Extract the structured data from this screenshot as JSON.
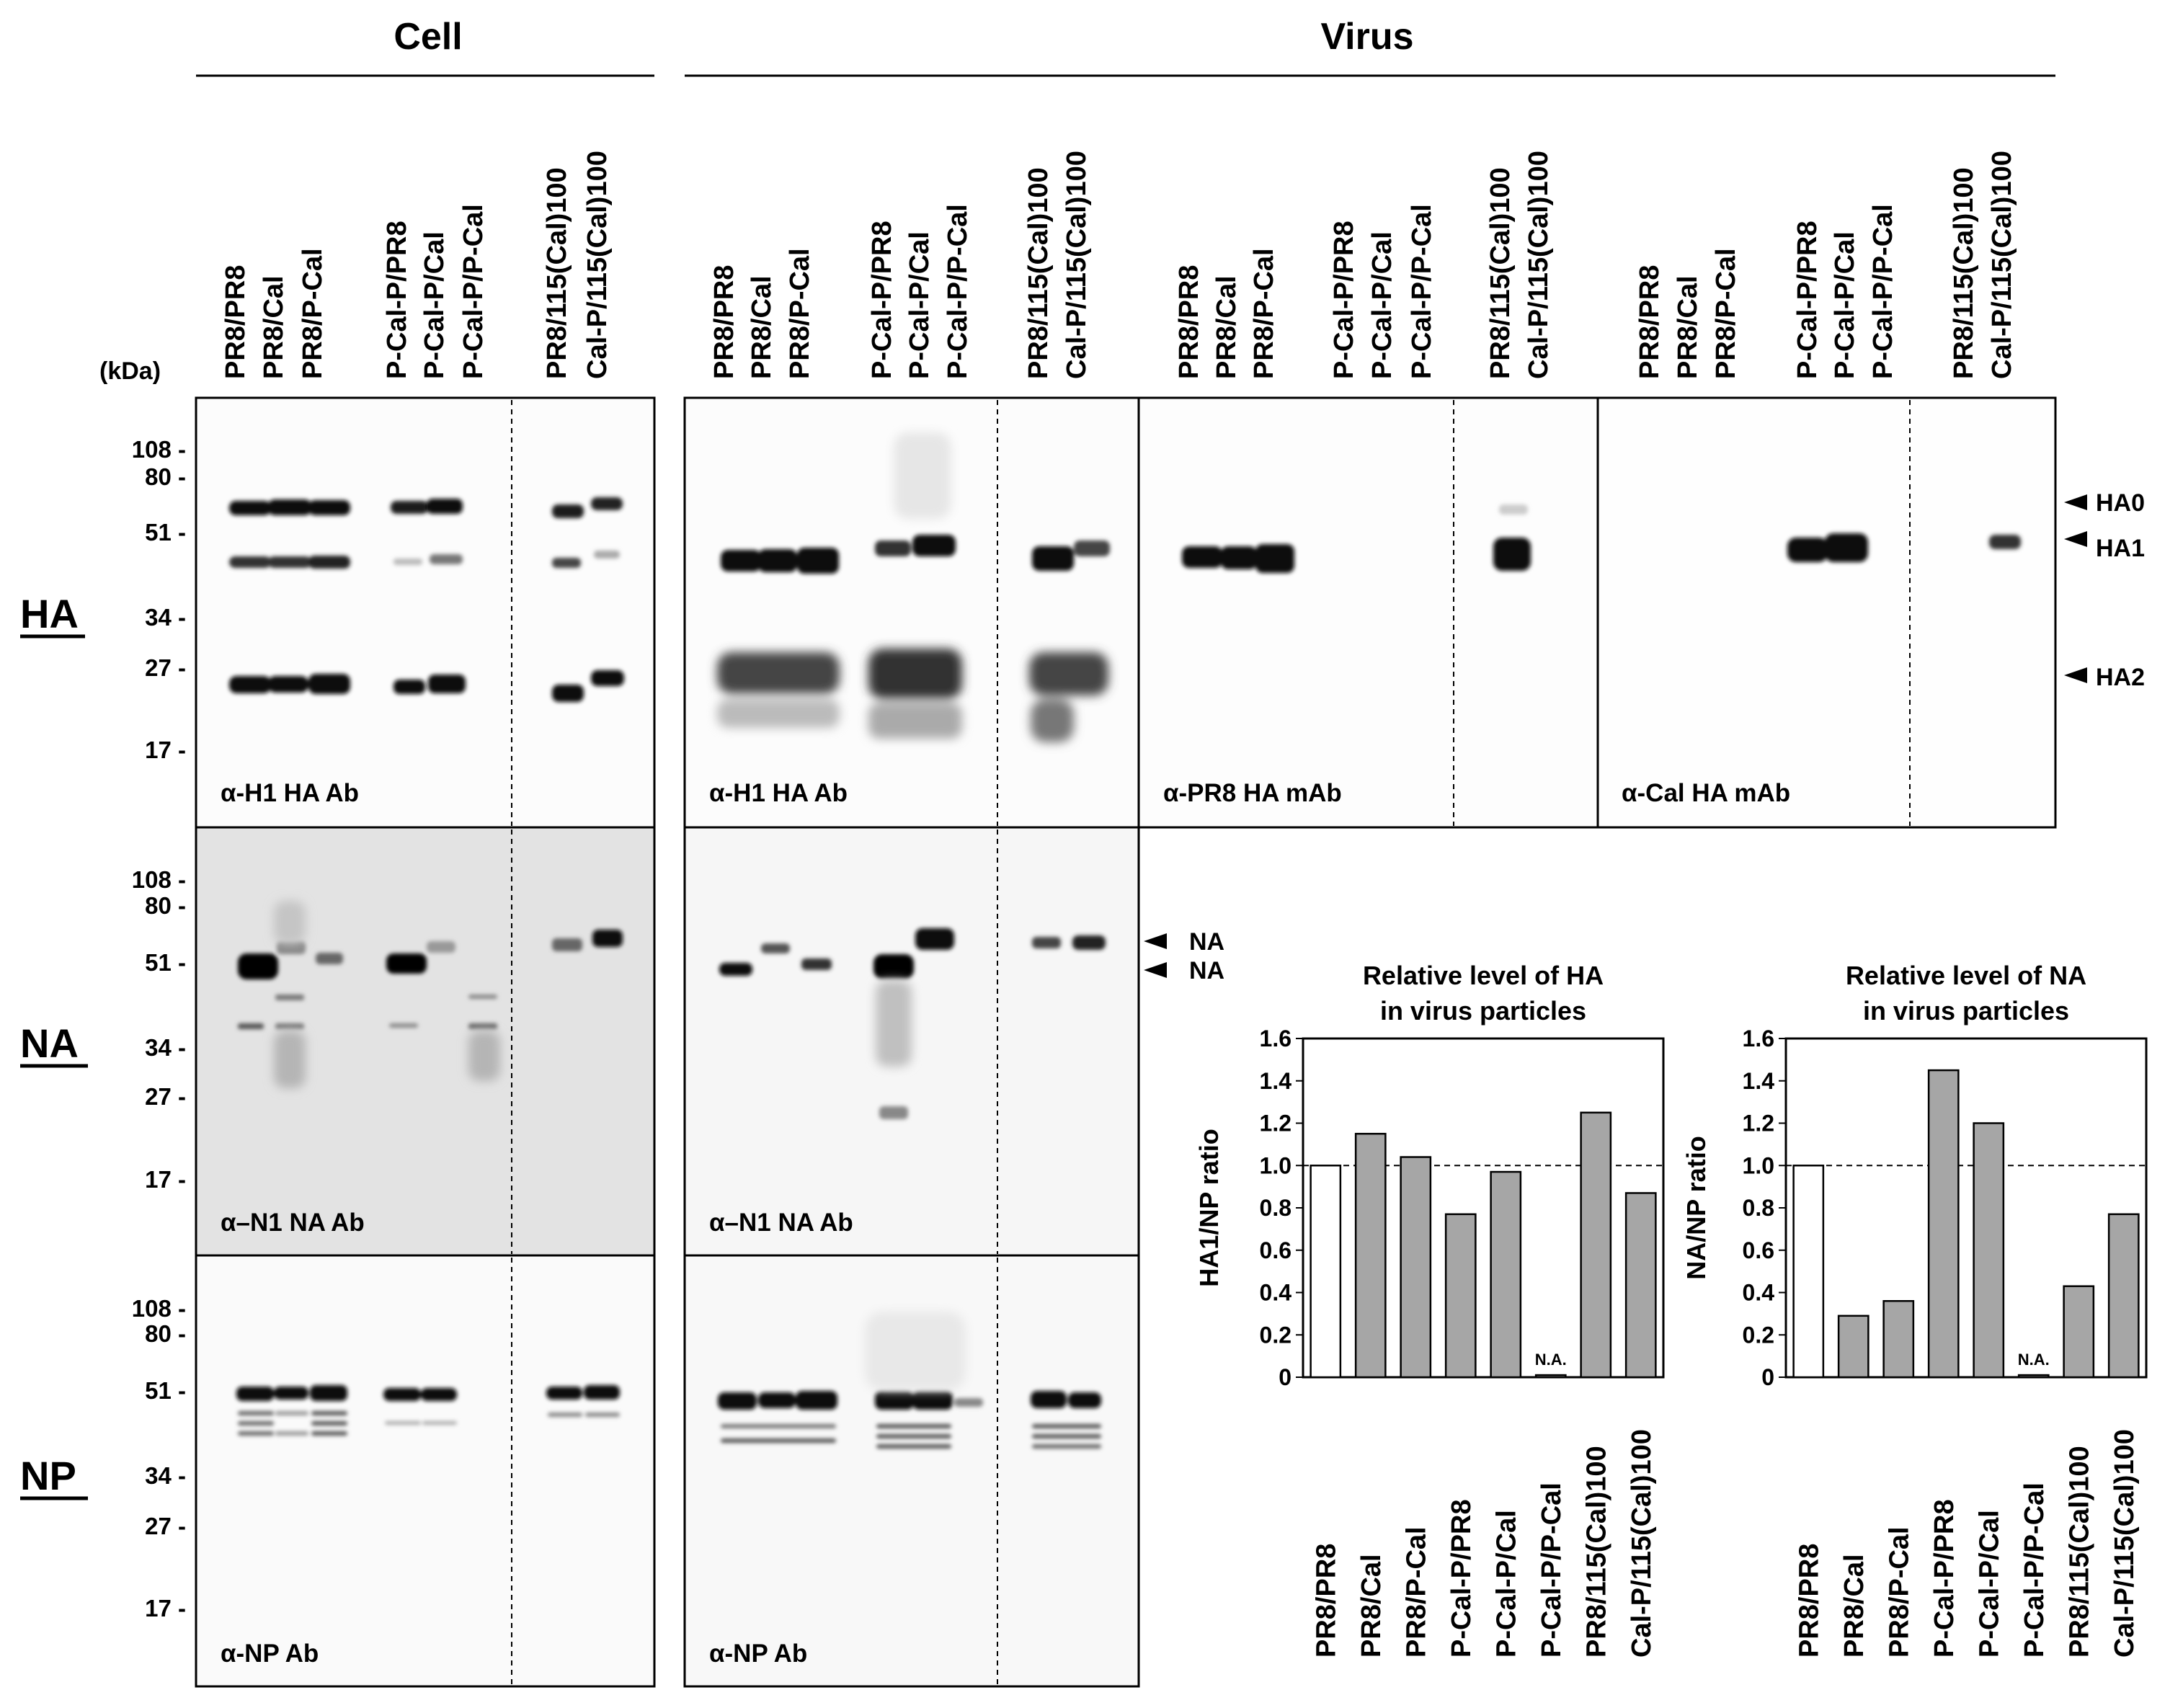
{
  "headers": {
    "cell": "Cell",
    "virus": "Virus"
  },
  "kda_unit": "(kDa)",
  "markers_ha": [
    "108 -",
    "80 -",
    "51 -",
    "34 -",
    "27 -",
    "17 -"
  ],
  "markers_na": [
    "108 -",
    "80 -",
    "51 -",
    "34 -",
    "27 -",
    "17 -"
  ],
  "markers_np": [
    "108 -",
    "80 -",
    "51 -",
    "34 -",
    "27 -",
    "17 -"
  ],
  "row_labels": {
    "ha": "HA",
    "na": "NA",
    "np": "NP"
  },
  "lane_labels": [
    "PR8/PR8",
    "PR8/Cal",
    "PR8/P-Cal",
    "P-Cal-P/PR8",
    "P-Cal-P/Cal",
    "P-Cal-P/P-Cal",
    "PR8/115(Cal)100",
    "Cal-P/115(Cal)100"
  ],
  "antibodies": {
    "cell_ha": "α-H1 HA Ab",
    "virus_ha": "α-H1 HA Ab",
    "virus_pr8": "α-PR8 HA mAb",
    "virus_cal": "α-Cal HA mAb",
    "cell_na": "α–N1 NA Ab",
    "virus_na": "α–N1 NA Ab",
    "cell_np": "α-NP Ab",
    "virus_np": "α-NP Ab"
  },
  "band_labels": {
    "ha0": "HA0",
    "ha1": "HA1",
    "ha2": "HA2",
    "na_upper": "NA",
    "na_lower": "NA"
  },
  "colors": {
    "bar_reference": "#ffffff",
    "bar_fill": "#a6a6a6",
    "na_panel_bg": "#e3e3e3"
  },
  "chart_data": [
    {
      "type": "bar",
      "title": "Relative level of HA",
      "subtitle": "in virus particles",
      "ylabel": "HA1/NP ratio",
      "xlabel": "",
      "ylim": [
        0,
        1.6
      ],
      "yticks": [
        "0",
        "0.2",
        "0.4",
        "0.6",
        "0.8",
        "1.0",
        "1.2",
        "1.4",
        "1.6"
      ],
      "reference_line": 1.0,
      "categories": [
        "PR8/PR8",
        "PR8/Cal",
        "PR8/P-Cal",
        "P-Cal-P/PR8",
        "P-Cal-P/Cal",
        "P-Cal-P/P-Cal",
        "PR8/115(Cal)100",
        "Cal-P/115(Cal)100"
      ],
      "values": [
        1.0,
        1.15,
        1.04,
        0.77,
        0.97,
        0.01,
        1.25,
        0.87
      ],
      "annotations": [
        "",
        "",
        "",
        "",
        "",
        "N.A.",
        "",
        ""
      ]
    },
    {
      "type": "bar",
      "title": "Relative level of NA",
      "subtitle": "in virus particles",
      "ylabel": "NA/NP ratio",
      "xlabel": "",
      "ylim": [
        0,
        1.6
      ],
      "yticks": [
        "0",
        "0.2",
        "0.4",
        "0.6",
        "0.8",
        "1.0",
        "1.2",
        "1.4",
        "1.6"
      ],
      "reference_line": 1.0,
      "categories": [
        "PR8/PR8",
        "PR8/Cal",
        "PR8/P-Cal",
        "P-Cal-P/PR8",
        "P-Cal-P/Cal",
        "P-Cal-P/P-Cal",
        "PR8/115(Cal)100",
        "Cal-P/115(Cal)100"
      ],
      "values": [
        1.0,
        0.29,
        0.36,
        1.45,
        1.2,
        0.01,
        0.43,
        0.77
      ],
      "annotations": [
        "",
        "",
        "",
        "",
        "",
        "N.A.",
        "",
        ""
      ]
    }
  ]
}
